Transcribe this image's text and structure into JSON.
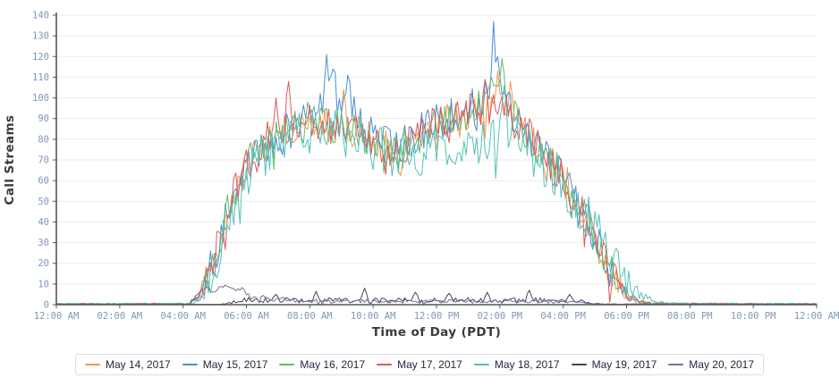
{
  "chart_data": {
    "type": "line",
    "title": "",
    "xlabel": "Time of Day (PDT)",
    "ylabel": "Call Streams",
    "grid": "horizontal-only",
    "legend_position": "bottom-center-boxed",
    "x_axis": {
      "unit": "hour-of-day",
      "min_hour": 0,
      "max_hour": 24,
      "tick_interval_hours": 2,
      "tick_labels": [
        "12:00 AM",
        "02:00 AM",
        "04:00 AM",
        "06:00 AM",
        "08:00 AM",
        "10:00 AM",
        "12:00 PM",
        "02:00 PM",
        "04:00 PM",
        "06:00 PM",
        "08:00 PM",
        "10:00 PM",
        "12:00 AM"
      ]
    },
    "y_axis": {
      "min": 0,
      "max": 140,
      "tick_interval": 10,
      "tick_labels": [
        "0",
        "10",
        "20",
        "30",
        "40",
        "50",
        "60",
        "70",
        "80",
        "90",
        "100",
        "110",
        "120",
        "130",
        "140"
      ]
    },
    "sample_minutes": 4,
    "series_note": "High-frequency noisy call-volume traces; envelope points are [hour, mean streams], noise is +/- amplitude around envelope, spikes are notable extreme points [hour, value] read from the plot.",
    "series": [
      {
        "name": "May 14, 2017",
        "color": "#F79843",
        "noise": 9,
        "seed": 101,
        "envelope": [
          [
            0,
            0.4
          ],
          [
            4.2,
            0.5
          ],
          [
            4.5,
            4
          ],
          [
            4.8,
            14
          ],
          [
            5.1,
            30
          ],
          [
            5.4,
            45
          ],
          [
            5.7,
            58
          ],
          [
            6.0,
            67
          ],
          [
            6.4,
            75
          ],
          [
            6.8,
            80
          ],
          [
            7.2,
            83
          ],
          [
            7.6,
            85
          ],
          [
            8.0,
            86
          ],
          [
            8.5,
            87
          ],
          [
            9.0,
            86
          ],
          [
            9.5,
            83
          ],
          [
            10.0,
            79
          ],
          [
            10.4,
            76
          ],
          [
            10.8,
            75
          ],
          [
            11.2,
            79
          ],
          [
            11.6,
            84
          ],
          [
            12.0,
            88
          ],
          [
            12.5,
            91
          ],
          [
            13.0,
            93
          ],
          [
            13.5,
            96
          ],
          [
            13.9,
            98
          ],
          [
            14.2,
            95
          ],
          [
            14.6,
            88
          ],
          [
            15.0,
            81
          ],
          [
            15.4,
            73
          ],
          [
            15.8,
            65
          ],
          [
            16.2,
            56
          ],
          [
            16.6,
            46
          ],
          [
            17.0,
            33
          ],
          [
            17.4,
            19
          ],
          [
            17.8,
            9
          ],
          [
            18.1,
            4
          ],
          [
            18.4,
            1.5
          ],
          [
            18.8,
            0.6
          ],
          [
            24,
            0.4
          ]
        ],
        "spikes": [
          [
            9.05,
            104
          ],
          [
            13.95,
            113
          ],
          [
            14.3,
            108
          ]
        ]
      },
      {
        "name": "May 15, 2017",
        "color": "#4A8FD9",
        "noise": 10,
        "seed": 102,
        "envelope": [
          [
            0,
            0.4
          ],
          [
            4.2,
            0.5
          ],
          [
            4.5,
            4
          ],
          [
            4.8,
            14
          ],
          [
            5.1,
            30
          ],
          [
            5.4,
            45
          ],
          [
            5.7,
            58
          ],
          [
            6.0,
            67
          ],
          [
            6.4,
            75
          ],
          [
            6.8,
            80
          ],
          [
            7.2,
            83
          ],
          [
            7.6,
            88
          ],
          [
            8.0,
            92
          ],
          [
            8.3,
            98
          ],
          [
            8.6,
            103
          ],
          [
            9.0,
            100
          ],
          [
            9.4,
            92
          ],
          [
            9.8,
            85
          ],
          [
            10.2,
            79
          ],
          [
            10.6,
            76
          ],
          [
            11.0,
            78
          ],
          [
            11.4,
            82
          ],
          [
            11.8,
            86
          ],
          [
            12.2,
            89
          ],
          [
            12.6,
            91
          ],
          [
            13.0,
            95
          ],
          [
            13.4,
            100
          ],
          [
            13.7,
            104
          ],
          [
            14.0,
            100
          ],
          [
            14.3,
            94
          ],
          [
            14.6,
            88
          ],
          [
            15.0,
            81
          ],
          [
            15.4,
            73
          ],
          [
            15.8,
            65
          ],
          [
            16.2,
            56
          ],
          [
            16.6,
            46
          ],
          [
            17.0,
            33
          ],
          [
            17.4,
            19
          ],
          [
            17.8,
            9
          ],
          [
            18.1,
            4
          ],
          [
            18.4,
            1.5
          ],
          [
            18.8,
            0.6
          ],
          [
            24,
            0.4
          ]
        ],
        "spikes": [
          [
            8.55,
            121
          ],
          [
            8.75,
            114
          ],
          [
            9.2,
            111
          ],
          [
            13.83,
            137
          ],
          [
            13.95,
            120
          ]
        ]
      },
      {
        "name": "May 16, 2017",
        "color": "#66BB6A",
        "noise": 9,
        "seed": 103,
        "envelope": [
          [
            0,
            0.4
          ],
          [
            4.2,
            0.5
          ],
          [
            4.5,
            4
          ],
          [
            4.8,
            14
          ],
          [
            5.1,
            30
          ],
          [
            5.4,
            45
          ],
          [
            5.7,
            58
          ],
          [
            6.0,
            67
          ],
          [
            6.4,
            75
          ],
          [
            6.8,
            80
          ],
          [
            7.2,
            83
          ],
          [
            7.6,
            85
          ],
          [
            8.0,
            86
          ],
          [
            8.5,
            87
          ],
          [
            9.0,
            86
          ],
          [
            9.5,
            83
          ],
          [
            10.0,
            79
          ],
          [
            10.4,
            76
          ],
          [
            10.8,
            75
          ],
          [
            11.2,
            79
          ],
          [
            11.6,
            84
          ],
          [
            12.0,
            88
          ],
          [
            12.5,
            91
          ],
          [
            13.0,
            93
          ],
          [
            13.5,
            96
          ],
          [
            13.9,
            98
          ],
          [
            14.2,
            95
          ],
          [
            14.6,
            88
          ],
          [
            15.0,
            81
          ],
          [
            15.4,
            73
          ],
          [
            15.8,
            65
          ],
          [
            16.2,
            56
          ],
          [
            16.6,
            46
          ],
          [
            17.0,
            33
          ],
          [
            17.4,
            19
          ],
          [
            17.8,
            9
          ],
          [
            18.1,
            4
          ],
          [
            18.4,
            1.5
          ],
          [
            18.8,
            0.6
          ],
          [
            24,
            0.4
          ]
        ],
        "spikes": [
          [
            7.9,
            98
          ],
          [
            13.75,
            110
          ],
          [
            14.05,
            119
          ]
        ]
      },
      {
        "name": "May 17, 2017",
        "color": "#E15759",
        "noise": 9,
        "seed": 104,
        "envelope": [
          [
            0,
            0.4
          ],
          [
            4.2,
            0.5
          ],
          [
            4.5,
            4
          ],
          [
            4.8,
            14
          ],
          [
            5.1,
            30
          ],
          [
            5.4,
            45
          ],
          [
            5.7,
            58
          ],
          [
            6.0,
            67
          ],
          [
            6.4,
            76
          ],
          [
            6.8,
            82
          ],
          [
            7.2,
            86
          ],
          [
            7.6,
            89
          ],
          [
            8.0,
            88
          ],
          [
            8.5,
            87
          ],
          [
            9.0,
            86
          ],
          [
            9.5,
            83
          ],
          [
            10.0,
            79
          ],
          [
            10.4,
            76
          ],
          [
            10.8,
            75
          ],
          [
            11.2,
            79
          ],
          [
            11.6,
            84
          ],
          [
            12.0,
            88
          ],
          [
            12.5,
            91
          ],
          [
            13.0,
            93
          ],
          [
            13.5,
            96
          ],
          [
            13.9,
            97
          ],
          [
            14.2,
            94
          ],
          [
            14.6,
            88
          ],
          [
            15.0,
            81
          ],
          [
            15.4,
            73
          ],
          [
            15.8,
            65
          ],
          [
            16.2,
            56
          ],
          [
            16.6,
            46
          ],
          [
            17.0,
            33
          ],
          [
            17.4,
            19
          ],
          [
            17.8,
            9
          ],
          [
            18.1,
            4
          ],
          [
            18.4,
            1.5
          ],
          [
            18.8,
            0.6
          ],
          [
            24,
            0.4
          ]
        ],
        "spikes": [
          [
            6.9,
            100
          ],
          [
            7.35,
            108
          ],
          [
            13.55,
            109
          ]
        ]
      },
      {
        "name": "May 18, 2017",
        "color": "#53C2B8",
        "noise": 11,
        "seed": 105,
        "envelope": [
          [
            0,
            0.4
          ],
          [
            4.3,
            0.5
          ],
          [
            4.6,
            4
          ],
          [
            4.9,
            13
          ],
          [
            5.2,
            28
          ],
          [
            5.5,
            42
          ],
          [
            5.8,
            55
          ],
          [
            6.1,
            64
          ],
          [
            6.5,
            72
          ],
          [
            7.0,
            78
          ],
          [
            7.5,
            82
          ],
          [
            8.0,
            84
          ],
          [
            8.5,
            85
          ],
          [
            9.0,
            83
          ],
          [
            9.5,
            80
          ],
          [
            10.0,
            76
          ],
          [
            10.5,
            72
          ],
          [
            11.0,
            71
          ],
          [
            11.5,
            73
          ],
          [
            12.0,
            74
          ],
          [
            12.5,
            72
          ],
          [
            13.0,
            74
          ],
          [
            13.5,
            78
          ],
          [
            14.0,
            83
          ],
          [
            14.3,
            85
          ],
          [
            14.7,
            79
          ],
          [
            15.1,
            72
          ],
          [
            15.5,
            66
          ],
          [
            16.0,
            58
          ],
          [
            16.5,
            48
          ],
          [
            17.0,
            37
          ],
          [
            17.4,
            25
          ],
          [
            17.8,
            15
          ],
          [
            18.2,
            8
          ],
          [
            18.6,
            3.5
          ],
          [
            19.0,
            1.2
          ],
          [
            19.5,
            0.5
          ],
          [
            24,
            0.4
          ]
        ],
        "spikes": [
          [
            8.1,
            96
          ],
          [
            14.15,
            106
          ]
        ]
      },
      {
        "name": "May 19, 2017",
        "color": "#44444F",
        "noise": 1.5,
        "seed": 106,
        "envelope": [
          [
            0,
            0.15
          ],
          [
            5.1,
            0.15
          ],
          [
            5.4,
            0.8
          ],
          [
            5.7,
            1.6
          ],
          [
            6.0,
            2.3
          ],
          [
            7.0,
            2.2
          ],
          [
            8.0,
            2.0
          ],
          [
            9.0,
            2.3
          ],
          [
            10.0,
            2.0
          ],
          [
            11.0,
            2.2
          ],
          [
            12.0,
            2.0
          ],
          [
            13.0,
            2.2
          ],
          [
            14.0,
            2.0
          ],
          [
            15.0,
            2.2
          ],
          [
            16.0,
            2.0
          ],
          [
            16.6,
            1.6
          ],
          [
            16.9,
            0.8
          ],
          [
            17.2,
            0.25
          ],
          [
            24,
            0.15
          ]
        ],
        "spikes": [
          [
            6.9,
            5
          ],
          [
            8.2,
            6.5
          ],
          [
            9.7,
            8
          ],
          [
            11.3,
            6
          ],
          [
            12.4,
            5.5
          ],
          [
            13.6,
            6
          ],
          [
            14.9,
            7
          ],
          [
            16.2,
            5
          ]
        ]
      },
      {
        "name": "May 20, 2017",
        "color": "#7E6B9B",
        "noise": 1.2,
        "seed": 107,
        "envelope": [
          [
            0,
            0.15
          ],
          [
            4.2,
            0.2
          ],
          [
            4.4,
            4.5
          ],
          [
            4.6,
            7.5
          ],
          [
            4.9,
            7
          ],
          [
            5.2,
            7.8
          ],
          [
            5.5,
            7.3
          ],
          [
            5.8,
            7.8
          ],
          [
            5.95,
            6.5
          ],
          [
            6.1,
            3.8
          ],
          [
            6.4,
            3.2
          ],
          [
            6.8,
            2.6
          ],
          [
            7.4,
            2.2
          ],
          [
            8.5,
            1.8
          ],
          [
            10.0,
            1.6
          ],
          [
            12.0,
            1.6
          ],
          [
            14.0,
            1.5
          ],
          [
            16.0,
            1.4
          ],
          [
            16.5,
            0.9
          ],
          [
            17.0,
            0.3
          ],
          [
            24,
            0.15
          ]
        ],
        "spikes": [
          [
            4.7,
            8.5
          ],
          [
            5.3,
            9.5
          ],
          [
            6.5,
            4.5
          ]
        ]
      }
    ]
  },
  "style_colors": {
    "axis_spine": "#55565C",
    "grid_line": "#EBEBF1",
    "tick_label": "#8296B8",
    "axis_title": "#3B3B3B",
    "legend_border": "#DCDCE4",
    "legend_text": "#26263A",
    "background": "#FFFFFF"
  }
}
